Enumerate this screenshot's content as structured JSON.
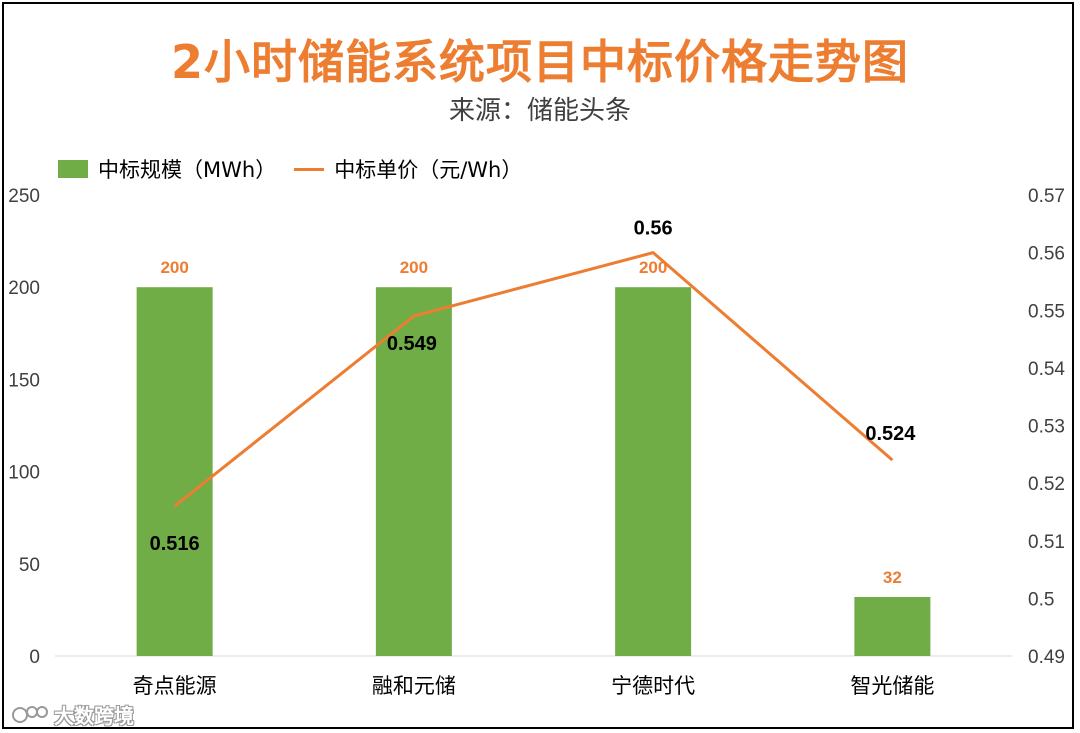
{
  "chart_data": {
    "type": "bar+line",
    "title": "2小时储能系统项目中标价格走势图",
    "subtitle": "来源：储能头条",
    "categories": [
      "奇点能源",
      "融和元储",
      "宁德时代",
      "智光储能"
    ],
    "series": [
      {
        "name": "中标规模（MWh）",
        "type": "bar",
        "axis": "left",
        "values": [
          200,
          200,
          200,
          32
        ],
        "labels": [
          "200",
          "200",
          "200",
          "32"
        ]
      },
      {
        "name": "中标单价（元/Wh）",
        "type": "line",
        "axis": "right",
        "values": [
          0.516,
          0.549,
          0.56,
          0.524
        ],
        "labels": [
          "0.516",
          "0.549",
          "0.56",
          "0.524"
        ]
      }
    ],
    "y_left": {
      "min": 0,
      "max": 250,
      "ticks": [
        "0",
        "50",
        "100",
        "150",
        "200",
        "250"
      ]
    },
    "y_right": {
      "min": 0.49,
      "max": 0.57,
      "ticks": [
        "0.49",
        "0.5",
        "0.51",
        "0.52",
        "0.53",
        "0.54",
        "0.55",
        "0.56",
        "0.57"
      ]
    },
    "legend_position": "top-left"
  },
  "colors": {
    "bar": "#70ad47",
    "line": "#ed7d31",
    "title": "#ed7d31"
  },
  "watermark": {
    "text": "大数跨境",
    "icon": "watermark-logo-icon"
  }
}
